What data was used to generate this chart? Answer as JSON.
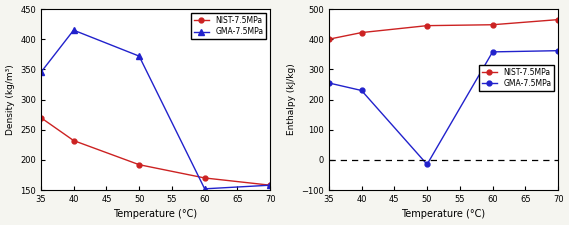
{
  "temp_density": [
    35,
    40,
    50,
    60,
    70
  ],
  "density_nist": [
    270,
    232,
    192,
    170,
    158
  ],
  "density_gma": [
    345,
    415,
    372,
    152,
    158
  ],
  "temp_enthalpy": [
    35,
    40,
    50,
    52,
    60,
    70
  ],
  "enthalpy_nist": [
    400,
    422,
    445,
    448,
    465,
    485
  ],
  "enthalpy_gma": [
    255,
    230,
    -15,
    -15,
    358,
    362
  ],
  "temp_enthalpy_gma": [
    35,
    40,
    50,
    60,
    70
  ],
  "enthalpy_gma_pts": [
    255,
    230,
    -15,
    358,
    362
  ],
  "density_xlim": [
    35,
    70
  ],
  "density_ylim": [
    150,
    450
  ],
  "enthalpy_xlim": [
    35,
    70
  ],
  "enthalpy_ylim": [
    -100,
    500
  ],
  "density_yticks": [
    150,
    200,
    250,
    300,
    350,
    400,
    450
  ],
  "enthalpy_yticks": [
    -100,
    0,
    100,
    200,
    300,
    400,
    500
  ],
  "xticks": [
    35,
    40,
    45,
    50,
    55,
    60,
    65,
    70
  ],
  "xlabel": "Temperature (°C)",
  "density_ylabel": "Density (kg/m³)",
  "enthalpy_ylabel": "Enthalpy (kJ/kg)",
  "nist_label": "NIST-7.5MPa",
  "gma_label": "GMA-7.5MPa",
  "nist_color": "#cc2222",
  "gma_color": "#2222cc",
  "fig_facecolor": "#f5f5f0",
  "ax_facecolor": "#ffffff"
}
